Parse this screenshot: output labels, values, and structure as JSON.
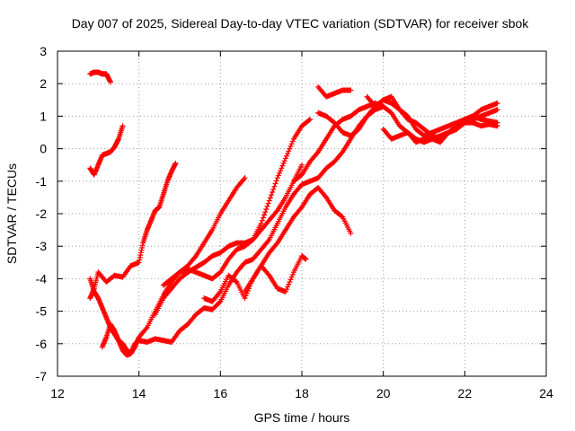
{
  "chart_data": {
    "type": "scatter",
    "title": "Day 007 of 2025, Sidereal Day-to-day VTEC variation (SDTVAR) for receiver sbok",
    "xlabel": "GPS time / hours",
    "ylabel": "SDTVAR / TECUs",
    "xlim": [
      12,
      24
    ],
    "ylim": [
      -7,
      3
    ],
    "xticks": [
      12,
      14,
      16,
      18,
      20,
      22,
      24
    ],
    "yticks": [
      -7,
      -6,
      -5,
      -4,
      -3,
      -2,
      -1,
      0,
      1,
      2,
      3
    ],
    "grid": true,
    "legend": "none",
    "marker": "plus",
    "color": "#ff0000",
    "series": [
      {
        "x": [
          12.8,
          12.9,
          13.0,
          13.1,
          13.2,
          13.3,
          13.4,
          13.5,
          13.6,
          13.8,
          14.0,
          14.1,
          14.2,
          14.3,
          14.4,
          14.5,
          14.6,
          14.7,
          14.8,
          14.9
        ],
        "y": [
          -0.6,
          -0.8,
          -0.5,
          -0.2,
          -0.15,
          -0.1,
          0.05,
          0.3,
          0.7,
          null,
          null,
          null,
          null,
          null,
          null,
          null,
          null,
          null,
          null,
          null
        ]
      },
      {
        "x": [
          12.8,
          12.9,
          13.0,
          13.1,
          13.2,
          13.3
        ],
        "y": [
          2.3,
          2.35,
          2.35,
          2.3,
          2.3,
          2.05
        ]
      },
      {
        "x": [
          12.8,
          12.9,
          13.0,
          13.2,
          13.4,
          13.6,
          13.8,
          14.0,
          14.1,
          14.2,
          14.3,
          14.4,
          14.5,
          14.6,
          14.7,
          14.8,
          14.9
        ],
        "y": [
          -4.6,
          -4.3,
          -3.8,
          -4.1,
          -3.9,
          -3.95,
          -3.6,
          -3.5,
          -2.9,
          -2.5,
          -2.2,
          -1.9,
          -1.8,
          -1.4,
          -1.0,
          -0.7,
          -0.45
        ]
      },
      {
        "x": [
          12.8,
          12.9,
          13.0,
          13.1,
          13.2,
          13.3,
          13.4,
          13.5,
          13.6,
          13.7,
          13.8,
          13.9,
          14.0,
          14.2,
          14.4,
          14.6,
          14.8,
          15.0,
          15.2,
          15.4,
          15.6,
          15.8,
          16.0,
          16.2,
          16.4,
          16.6,
          16.8,
          17.0,
          17.2,
          17.4,
          17.6,
          17.8,
          18.0,
          18.2,
          18.4,
          18.6,
          18.8,
          19.0
        ],
        "y": [
          -4.0,
          -4.4,
          -4.6,
          -4.9,
          -5.2,
          -5.5,
          -5.7,
          -5.9,
          -6.0,
          -6.2,
          -6.3,
          -6.1,
          -5.8,
          -5.5,
          -5.0,
          -4.5,
          -4.1,
          -3.8,
          -3.6,
          -3.3,
          -2.9,
          -2.5,
          -2.0,
          -1.6,
          -1.2,
          -0.9,
          null,
          null,
          null,
          null,
          null,
          null,
          null,
          null,
          null,
          null,
          null,
          null
        ]
      },
      {
        "x": [
          13.1,
          13.2,
          13.3,
          13.4,
          13.5,
          13.6,
          13.7,
          13.8,
          13.9,
          14.0,
          14.2,
          14.4,
          14.6,
          14.8,
          15.0,
          15.2,
          15.4,
          15.6,
          15.8,
          16.0,
          16.2,
          16.4,
          16.6,
          16.8,
          17.0,
          17.2,
          17.4,
          17.6,
          17.8,
          18.0,
          18.2,
          18.4,
          18.6,
          18.8,
          19.0,
          19.2,
          19.4,
          19.6,
          19.8,
          20.0
        ],
        "y": [
          -6.1,
          -5.8,
          -5.4,
          -5.6,
          -5.9,
          -6.2,
          -6.35,
          -6.3,
          -6.0,
          -5.9,
          -5.95,
          -5.85,
          -5.9,
          -5.95,
          -5.6,
          -5.4,
          -5.1,
          -4.9,
          -4.95,
          -4.7,
          -4.2,
          -3.8,
          -3.5,
          -3.4,
          -3.1,
          -2.8,
          -2.3,
          -1.8,
          -1.4,
          -1.1,
          -1.0,
          -0.9,
          -0.6,
          -0.4,
          -0.1,
          0.3,
          0.7,
          1.0,
          1.2,
          1.3
        ]
      },
      {
        "x": [
          14.4,
          14.6,
          14.8,
          15.0,
          15.2,
          15.4,
          15.6,
          15.8,
          16.0,
          16.2,
          16.4,
          16.6,
          16.8,
          17.0,
          17.2,
          17.4,
          17.6,
          17.8,
          18.0
        ],
        "y": [
          -5.1,
          -4.6,
          -4.3,
          -4.0,
          -3.8,
          -3.65,
          -3.5,
          -3.3,
          -3.2,
          -3.0,
          -2.9,
          -2.9,
          -2.8,
          -2.5,
          -2.2,
          -1.9,
          -1.5,
          -1.0,
          -0.5
        ]
      },
      {
        "x": [
          14.6,
          14.8,
          15.0,
          15.2,
          15.4,
          15.6,
          15.8,
          16.0,
          16.2,
          16.4,
          16.6,
          16.8,
          17.0,
          17.2,
          17.4,
          17.6,
          17.8,
          18.0,
          18.2
        ],
        "y": [
          -4.2,
          -4.0,
          -3.8,
          -3.7,
          -3.8,
          -3.9,
          -4.0,
          -3.8,
          -3.4,
          -3.1,
          -3.0,
          -2.8,
          -2.3,
          -1.6,
          -0.9,
          -0.3,
          0.3,
          0.7,
          0.9
        ]
      },
      {
        "x": [
          15.6,
          15.8,
          16.0,
          16.2,
          16.4,
          16.6,
          16.8,
          17.0,
          17.2,
          17.4,
          17.6,
          17.8,
          18.0,
          18.2,
          18.4,
          18.6,
          18.8,
          19.0,
          19.2
        ],
        "y": [
          -4.6,
          -4.7,
          -4.4,
          -3.9,
          -4.1,
          -4.6,
          -4.0,
          -3.6,
          -3.2,
          -2.9,
          -2.5,
          -2.1,
          -1.8,
          -1.4,
          -1.2,
          -1.5,
          -1.9,
          -2.1,
          -2.6
        ]
      },
      {
        "x": [
          16.6,
          16.8,
          17.0,
          17.2,
          17.4,
          17.6,
          17.8,
          18.0,
          18.1
        ],
        "y": [
          -4.4,
          -4.0,
          -3.6,
          -3.9,
          -4.3,
          -4.4,
          -3.8,
          -3.3,
          -3.4
        ]
      },
      {
        "x": [
          17.8,
          18.0,
          18.2,
          18.4,
          18.6,
          18.8,
          19.0,
          19.2,
          19.4,
          19.6,
          19.8,
          20.0,
          20.2,
          20.4,
          20.6,
          20.8,
          21.0,
          21.2,
          21.4,
          21.6,
          21.8,
          22.0,
          22.2,
          22.4,
          22.6,
          22.8
        ],
        "y": [
          -1.0,
          -0.8,
          -0.4,
          -0.1,
          0.3,
          0.7,
          0.9,
          1.0,
          1.2,
          1.3,
          1.4,
          1.3,
          1.1,
          0.7,
          0.5,
          0.3,
          0.2,
          0.3,
          0.4,
          0.5,
          0.6,
          0.8,
          0.9,
          1.0,
          1.1,
          1.2
        ]
      },
      {
        "x": [
          18.4,
          18.6,
          18.8,
          19.0,
          19.2
        ],
        "y": [
          1.9,
          1.6,
          1.7,
          1.8,
          1.8
        ]
      },
      {
        "x": [
          18.4,
          18.6,
          18.8,
          19.0,
          19.2,
          19.4,
          19.6,
          19.8,
          20.0,
          20.2,
          20.4,
          20.6,
          20.8,
          21.0,
          21.2,
          21.4,
          21.6,
          21.8,
          22.0,
          22.2,
          22.4,
          22.6,
          22.8
        ],
        "y": [
          1.1,
          1.0,
          0.8,
          0.5,
          0.4,
          0.6,
          1.0,
          1.3,
          1.5,
          1.4,
          1.2,
          1.0,
          0.6,
          0.4,
          0.5,
          0.6,
          0.7,
          0.8,
          0.9,
          1.0,
          1.2,
          1.3,
          1.4
        ]
      },
      {
        "x": [
          20.0,
          20.2,
          20.4,
          20.6,
          20.8,
          21.0,
          21.2,
          21.4,
          21.6,
          21.8,
          22.0,
          22.2,
          22.4,
          22.6,
          22.8
        ],
        "y": [
          0.6,
          0.3,
          0.4,
          0.5,
          0.2,
          0.3,
          0.3,
          0.2,
          0.5,
          0.7,
          0.8,
          0.8,
          0.7,
          0.75,
          0.7
        ]
      },
      {
        "x": [
          19.6,
          19.8,
          20.0,
          20.2,
          20.4,
          20.6,
          20.8,
          21.0,
          21.2,
          21.4,
          21.6,
          21.8,
          22.0,
          22.2,
          22.4,
          22.6,
          22.8
        ],
        "y": [
          1.6,
          1.3,
          1.5,
          1.6,
          1.2,
          0.9,
          0.8,
          0.6,
          0.4,
          0.3,
          0.5,
          0.6,
          0.9,
          1.0,
          0.9,
          0.85,
          0.8
        ]
      }
    ]
  }
}
